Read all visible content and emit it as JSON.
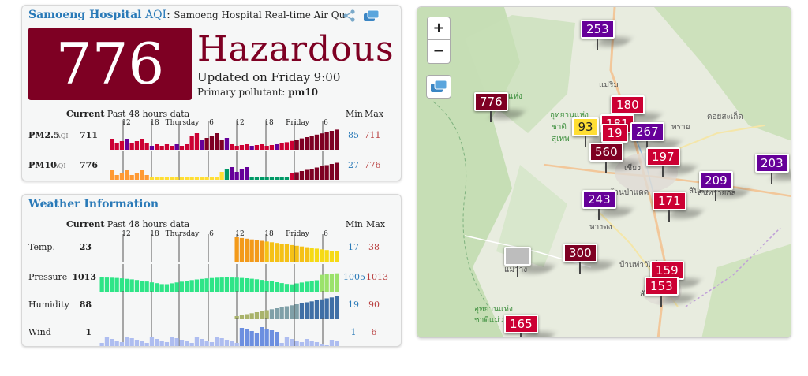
{
  "aqi_card": {
    "station": "Samoeng Hospital",
    "aqi_label": "AQI",
    "colon": ":",
    "subtitle": "Samoeng Hospital Real-time Air Qu",
    "aqi_value": "776",
    "level": "Hazardous",
    "updated": "Updated on Friday 9:00",
    "pollutant_label": "Primary pollutant:",
    "pollutant_value": "pm10",
    "current_label": "Current",
    "past_label": "Past 48 hours data",
    "min_label": "Min",
    "max_label": "Max",
    "ticks": [
      "12",
      "18",
      "Thursday",
      "6",
      "12",
      "18",
      "Friday",
      "6"
    ],
    "rows": [
      {
        "name": "PM2.5",
        "sub": "AQI",
        "current": "711",
        "min": "85",
        "max": "711"
      },
      {
        "name": "PM10",
        "sub": "AQI",
        "current": "776",
        "min": "27",
        "max": "776"
      }
    ]
  },
  "weather_card": {
    "title": "Weather Information",
    "current_label": "Current",
    "past_label": "Past 48 hours data",
    "min_label": "Min",
    "max_label": "Max",
    "ticks": [
      "12",
      "18",
      "Thursday",
      "6",
      "12",
      "18",
      "Friday",
      "6"
    ],
    "rows": [
      {
        "name": "Temp.",
        "current": "23",
        "min": "17",
        "max": "38"
      },
      {
        "name": "Pressure",
        "current": "1013",
        "min": "1005",
        "max": "1013"
      },
      {
        "name": "Humidity",
        "current": "88",
        "min": "19",
        "max": "90"
      },
      {
        "name": "Wind",
        "current": "1",
        "min": "1",
        "max": "6"
      }
    ]
  },
  "colors": {
    "hazardous": "#7e0023",
    "very_unhealthy": "#660099",
    "unhealthy": "#cc0033",
    "sensitive": "#ff9933",
    "moderate": "#ffde33",
    "good": "#009966",
    "link": "#2a7ab8",
    "max_red": "#b73b3b"
  },
  "icons": {
    "share": "share-icon",
    "layers": "layers-icon",
    "zoom_in": "+",
    "zoom_out": "−"
  },
  "map": {
    "markers": [
      {
        "value": "253",
        "level": "very_unhealthy"
      },
      {
        "value": "776",
        "level": "hazardous"
      },
      {
        "value": "180",
        "level": "unhealthy"
      },
      {
        "value": "93",
        "level": "moderate"
      },
      {
        "value": "181",
        "level": "unhealthy"
      },
      {
        "value": "19",
        "level": "unhealthy"
      },
      {
        "value": "267",
        "level": "very_unhealthy"
      },
      {
        "value": "560",
        "level": "hazardous"
      },
      {
        "value": "197",
        "level": "unhealthy"
      },
      {
        "value": "203",
        "level": "very_unhealthy"
      },
      {
        "value": "209",
        "level": "very_unhealthy"
      },
      {
        "value": "243",
        "level": "very_unhealthy"
      },
      {
        "value": "171",
        "level": "unhealthy"
      },
      {
        "value": "300",
        "level": "hazardous"
      },
      {
        "value": "159",
        "level": "unhealthy"
      },
      {
        "value": "153",
        "level": "unhealthy"
      },
      {
        "value": "165",
        "level": "unhealthy"
      },
      {
        "value": "",
        "level": "none"
      }
    ],
    "labels": [
      "แม่ริม",
      "แห่ง",
      "ชาติ",
      "อุทยานแห่ง",
      "สุเทพ",
      "ดอยสะเก็ด",
      "ทราย",
      "เชียง",
      "บ้านป่าแดด",
      "หางดง",
      "แม่วาง",
      "บ้านท่าวังน์",
      "อุทยานแห่ง",
      "ชาติแม่ว",
      "สันกำ",
      "สัน",
      "สันทรายกล"
    ]
  }
}
